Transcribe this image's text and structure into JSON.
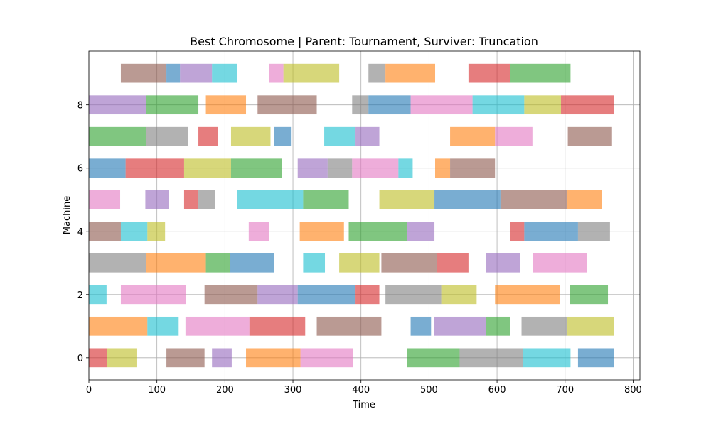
{
  "chart_data": {
    "type": "gantt",
    "title": "Best Chromosome | Parent: Tournament, Surviver: Truncation",
    "xlabel": "Time",
    "ylabel": "Machine",
    "xlim": [
      0,
      810
    ],
    "ylim": [
      -0.7,
      9.7
    ],
    "xticks": [
      0,
      100,
      200,
      300,
      400,
      500,
      600,
      700,
      800
    ],
    "yticks": [
      0,
      2,
      4,
      6,
      8
    ],
    "grid": true,
    "bar_height": 0.6,
    "bar_opacity": 0.6,
    "colors": {
      "blue": "#1f77b4",
      "orange": "#ff7f0e",
      "green": "#2ca02c",
      "red": "#d62728",
      "purple": "#9467bd",
      "brown": "#8c564b",
      "pink": "#e377c2",
      "gray": "#7f7f7f",
      "olive": "#bcbd22",
      "cyan": "#17becf"
    },
    "tasks": [
      {
        "machine": 0,
        "start": 0,
        "end": 27,
        "color": "red"
      },
      {
        "machine": 0,
        "start": 27,
        "end": 70,
        "color": "olive"
      },
      {
        "machine": 0,
        "start": 114,
        "end": 170,
        "color": "brown"
      },
      {
        "machine": 0,
        "start": 181,
        "end": 210,
        "color": "purple"
      },
      {
        "machine": 0,
        "start": 231,
        "end": 311,
        "color": "orange"
      },
      {
        "machine": 0,
        "start": 311,
        "end": 388,
        "color": "pink"
      },
      {
        "machine": 0,
        "start": 468,
        "end": 545,
        "color": "green"
      },
      {
        "machine": 0,
        "start": 545,
        "end": 638,
        "color": "gray"
      },
      {
        "machine": 0,
        "start": 638,
        "end": 708,
        "color": "cyan"
      },
      {
        "machine": 0,
        "start": 719,
        "end": 772,
        "color": "blue"
      },
      {
        "machine": 1,
        "start": 0,
        "end": 86,
        "color": "orange"
      },
      {
        "machine": 1,
        "start": 86,
        "end": 132,
        "color": "cyan"
      },
      {
        "machine": 1,
        "start": 142,
        "end": 236,
        "color": "pink"
      },
      {
        "machine": 1,
        "start": 236,
        "end": 318,
        "color": "red"
      },
      {
        "machine": 1,
        "start": 335,
        "end": 430,
        "color": "brown"
      },
      {
        "machine": 1,
        "start": 473,
        "end": 503,
        "color": "blue"
      },
      {
        "machine": 1,
        "start": 507,
        "end": 584,
        "color": "purple"
      },
      {
        "machine": 1,
        "start": 584,
        "end": 619,
        "color": "green"
      },
      {
        "machine": 1,
        "start": 636,
        "end": 703,
        "color": "gray"
      },
      {
        "machine": 1,
        "start": 703,
        "end": 772,
        "color": "olive"
      },
      {
        "machine": 2,
        "start": 0,
        "end": 26,
        "color": "cyan"
      },
      {
        "machine": 2,
        "start": 47,
        "end": 143,
        "color": "pink"
      },
      {
        "machine": 2,
        "start": 170,
        "end": 248,
        "color": "brown"
      },
      {
        "machine": 2,
        "start": 248,
        "end": 307,
        "color": "purple"
      },
      {
        "machine": 2,
        "start": 307,
        "end": 392,
        "color": "blue"
      },
      {
        "machine": 2,
        "start": 392,
        "end": 427,
        "color": "red"
      },
      {
        "machine": 2,
        "start": 436,
        "end": 518,
        "color": "gray"
      },
      {
        "machine": 2,
        "start": 518,
        "end": 570,
        "color": "olive"
      },
      {
        "machine": 2,
        "start": 597,
        "end": 692,
        "color": "orange"
      },
      {
        "machine": 2,
        "start": 707,
        "end": 763,
        "color": "green"
      },
      {
        "machine": 3,
        "start": 0,
        "end": 84,
        "color": "gray"
      },
      {
        "machine": 3,
        "start": 84,
        "end": 172,
        "color": "orange"
      },
      {
        "machine": 3,
        "start": 172,
        "end": 208,
        "color": "green"
      },
      {
        "machine": 3,
        "start": 208,
        "end": 272,
        "color": "blue"
      },
      {
        "machine": 3,
        "start": 315,
        "end": 347,
        "color": "cyan"
      },
      {
        "machine": 3,
        "start": 368,
        "end": 427,
        "color": "olive"
      },
      {
        "machine": 3,
        "start": 430,
        "end": 512,
        "color": "brown"
      },
      {
        "machine": 3,
        "start": 512,
        "end": 558,
        "color": "red"
      },
      {
        "machine": 3,
        "start": 584,
        "end": 634,
        "color": "purple"
      },
      {
        "machine": 3,
        "start": 653,
        "end": 732,
        "color": "pink"
      },
      {
        "machine": 4,
        "start": 0,
        "end": 47,
        "color": "brown"
      },
      {
        "machine": 4,
        "start": 47,
        "end": 86,
        "color": "cyan"
      },
      {
        "machine": 4,
        "start": 86,
        "end": 112,
        "color": "olive"
      },
      {
        "machine": 4,
        "start": 235,
        "end": 265,
        "color": "pink"
      },
      {
        "machine": 4,
        "start": 310,
        "end": 375,
        "color": "orange"
      },
      {
        "machine": 4,
        "start": 382,
        "end": 468,
        "color": "green"
      },
      {
        "machine": 4,
        "start": 468,
        "end": 508,
        "color": "purple"
      },
      {
        "machine": 4,
        "start": 619,
        "end": 640,
        "color": "red"
      },
      {
        "machine": 4,
        "start": 640,
        "end": 719,
        "color": "blue"
      },
      {
        "machine": 4,
        "start": 719,
        "end": 766,
        "color": "gray"
      },
      {
        "machine": 5,
        "start": 0,
        "end": 46,
        "color": "pink"
      },
      {
        "machine": 5,
        "start": 83,
        "end": 118,
        "color": "purple"
      },
      {
        "machine": 5,
        "start": 140,
        "end": 161,
        "color": "red"
      },
      {
        "machine": 5,
        "start": 161,
        "end": 186,
        "color": "gray"
      },
      {
        "machine": 5,
        "start": 218,
        "end": 315,
        "color": "cyan"
      },
      {
        "machine": 5,
        "start": 315,
        "end": 382,
        "color": "green"
      },
      {
        "machine": 5,
        "start": 427,
        "end": 508,
        "color": "olive"
      },
      {
        "machine": 5,
        "start": 508,
        "end": 605,
        "color": "blue"
      },
      {
        "machine": 5,
        "start": 605,
        "end": 703,
        "color": "brown"
      },
      {
        "machine": 5,
        "start": 703,
        "end": 754,
        "color": "orange"
      },
      {
        "machine": 6,
        "start": 0,
        "end": 54,
        "color": "blue"
      },
      {
        "machine": 6,
        "start": 54,
        "end": 140,
        "color": "red"
      },
      {
        "machine": 6,
        "start": 140,
        "end": 209,
        "color": "olive"
      },
      {
        "machine": 6,
        "start": 209,
        "end": 284,
        "color": "green"
      },
      {
        "machine": 6,
        "start": 307,
        "end": 351,
        "color": "purple"
      },
      {
        "machine": 6,
        "start": 351,
        "end": 387,
        "color": "gray"
      },
      {
        "machine": 6,
        "start": 387,
        "end": 455,
        "color": "pink"
      },
      {
        "machine": 6,
        "start": 455,
        "end": 476,
        "color": "cyan"
      },
      {
        "machine": 6,
        "start": 509,
        "end": 531,
        "color": "orange"
      },
      {
        "machine": 6,
        "start": 531,
        "end": 597,
        "color": "brown"
      },
      {
        "machine": 7,
        "start": 0,
        "end": 84,
        "color": "green"
      },
      {
        "machine": 7,
        "start": 84,
        "end": 146,
        "color": "gray"
      },
      {
        "machine": 7,
        "start": 161,
        "end": 190,
        "color": "red"
      },
      {
        "machine": 7,
        "start": 209,
        "end": 267,
        "color": "olive"
      },
      {
        "machine": 7,
        "start": 272,
        "end": 297,
        "color": "blue"
      },
      {
        "machine": 7,
        "start": 346,
        "end": 392,
        "color": "cyan"
      },
      {
        "machine": 7,
        "start": 392,
        "end": 427,
        "color": "purple"
      },
      {
        "machine": 7,
        "start": 531,
        "end": 597,
        "color": "orange"
      },
      {
        "machine": 7,
        "start": 597,
        "end": 652,
        "color": "pink"
      },
      {
        "machine": 7,
        "start": 704,
        "end": 769,
        "color": "brown"
      },
      {
        "machine": 8,
        "start": 0,
        "end": 84,
        "color": "purple"
      },
      {
        "machine": 8,
        "start": 84,
        "end": 161,
        "color": "green"
      },
      {
        "machine": 8,
        "start": 172,
        "end": 231,
        "color": "orange"
      },
      {
        "machine": 8,
        "start": 248,
        "end": 335,
        "color": "brown"
      },
      {
        "machine": 8,
        "start": 387,
        "end": 411,
        "color": "gray"
      },
      {
        "machine": 8,
        "start": 411,
        "end": 473,
        "color": "blue"
      },
      {
        "machine": 8,
        "start": 473,
        "end": 564,
        "color": "pink"
      },
      {
        "machine": 8,
        "start": 564,
        "end": 640,
        "color": "cyan"
      },
      {
        "machine": 8,
        "start": 640,
        "end": 694,
        "color": "olive"
      },
      {
        "machine": 8,
        "start": 694,
        "end": 772,
        "color": "red"
      },
      {
        "machine": 9,
        "start": 47,
        "end": 114,
        "color": "brown"
      },
      {
        "machine": 9,
        "start": 114,
        "end": 134,
        "color": "blue"
      },
      {
        "machine": 9,
        "start": 134,
        "end": 181,
        "color": "purple"
      },
      {
        "machine": 9,
        "start": 181,
        "end": 218,
        "color": "cyan"
      },
      {
        "machine": 9,
        "start": 265,
        "end": 286,
        "color": "pink"
      },
      {
        "machine": 9,
        "start": 286,
        "end": 368,
        "color": "olive"
      },
      {
        "machine": 9,
        "start": 411,
        "end": 436,
        "color": "gray"
      },
      {
        "machine": 9,
        "start": 436,
        "end": 509,
        "color": "orange"
      },
      {
        "machine": 9,
        "start": 558,
        "end": 619,
        "color": "red"
      },
      {
        "machine": 9,
        "start": 619,
        "end": 708,
        "color": "green"
      }
    ]
  }
}
